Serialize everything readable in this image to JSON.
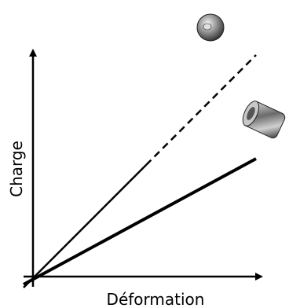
{
  "y_axis_label": "Charge",
  "x_axis_label": "Déformation"
}
